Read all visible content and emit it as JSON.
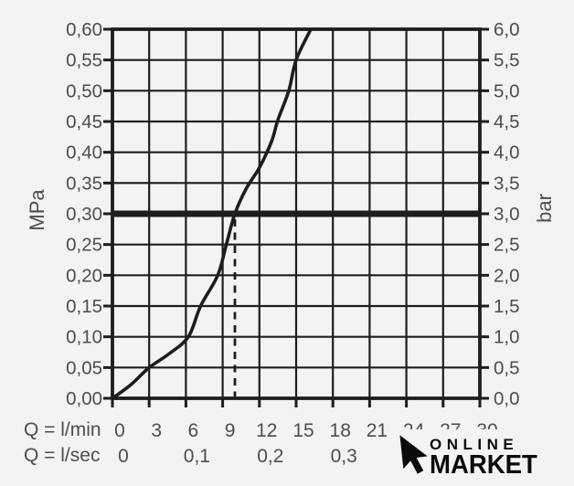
{
  "colors": {
    "background": "#f3f3f1",
    "grid": "#1d1d1b",
    "curve": "#1d1d1b",
    "text": "#4d4d4d",
    "watermark": "#0b0b0b"
  },
  "chart_data": {
    "type": "line",
    "title": "",
    "grid": true,
    "y_axis_left": {
      "label": "MPa",
      "range": [
        0,
        0.6
      ],
      "ticks": [
        {
          "v": 0.0,
          "label": "0,00"
        },
        {
          "v": 0.05,
          "label": "0,05"
        },
        {
          "v": 0.1,
          "label": "0,10"
        },
        {
          "v": 0.15,
          "label": "0,15"
        },
        {
          "v": 0.2,
          "label": "0,20"
        },
        {
          "v": 0.25,
          "label": "0,25"
        },
        {
          "v": 0.3,
          "label": "0,30"
        },
        {
          "v": 0.35,
          "label": "0,35"
        },
        {
          "v": 0.4,
          "label": "0,40"
        },
        {
          "v": 0.45,
          "label": "0,45"
        },
        {
          "v": 0.5,
          "label": "0,50"
        },
        {
          "v": 0.55,
          "label": "0,55"
        },
        {
          "v": 0.6,
          "label": "0,60"
        }
      ]
    },
    "y_axis_right": {
      "label": "bar",
      "range": [
        0,
        6
      ],
      "ticks": [
        {
          "v": 0.0,
          "label": "0,0"
        },
        {
          "v": 0.5,
          "label": "0,5"
        },
        {
          "v": 1.0,
          "label": "1,0"
        },
        {
          "v": 1.5,
          "label": "1,5"
        },
        {
          "v": 2.0,
          "label": "2,0"
        },
        {
          "v": 2.5,
          "label": "2,5"
        },
        {
          "v": 3.0,
          "label": "3,0"
        },
        {
          "v": 3.5,
          "label": "3,5"
        },
        {
          "v": 4.0,
          "label": "4,0"
        },
        {
          "v": 4.5,
          "label": "4,5"
        },
        {
          "v": 5.0,
          "label": "5,0"
        },
        {
          "v": 5.5,
          "label": "5,5"
        },
        {
          "v": 6.0,
          "label": "6,0"
        }
      ]
    },
    "x_axis": {
      "label": "Q = l/min",
      "range": [
        0,
        30
      ],
      "ticks": [
        {
          "v": 0,
          "label": "0"
        },
        {
          "v": 3,
          "label": "3"
        },
        {
          "v": 6,
          "label": "6"
        },
        {
          "v": 9,
          "label": "9"
        },
        {
          "v": 12,
          "label": "12"
        },
        {
          "v": 15,
          "label": "15"
        },
        {
          "v": 18,
          "label": "18"
        },
        {
          "v": 21,
          "label": "21"
        },
        {
          "v": 24,
          "label": "24"
        },
        {
          "v": 27,
          "label": "27"
        },
        {
          "v": 30,
          "label": "30"
        }
      ]
    },
    "x_axis_secondary": {
      "label": "Q = l/sec",
      "ticks": [
        {
          "v": 0,
          "label": "0"
        },
        {
          "v": 6,
          "label": "0,1"
        },
        {
          "v": 12,
          "label": "0,2"
        },
        {
          "v": 18,
          "label": "0,3"
        }
      ]
    },
    "series": [
      {
        "name": "pressure-flow-curve",
        "points": [
          [
            0,
            0
          ],
          [
            1.5,
            0.022
          ],
          [
            3,
            0.05
          ],
          [
            4.6,
            0.072
          ],
          [
            6.2,
            0.1
          ],
          [
            7.2,
            0.15
          ],
          [
            8.6,
            0.2
          ],
          [
            9.3,
            0.25
          ],
          [
            10,
            0.3
          ],
          [
            10.9,
            0.34
          ],
          [
            12,
            0.375
          ],
          [
            13,
            0.418
          ],
          [
            13.5,
            0.452
          ],
          [
            14.4,
            0.5
          ],
          [
            15,
            0.55
          ],
          [
            16.2,
            0.6
          ]
        ]
      }
    ],
    "reference_line": {
      "mpa": 0.3,
      "bar": 3.0
    },
    "marker_line": {
      "l_min": 10,
      "from_mpa": 0.3,
      "to_mpa": 0,
      "style": "dashed"
    }
  },
  "watermark": {
    "line1": "ONLINE",
    "line2": "MARKET",
    "icon": "cursor-arrow-icon"
  }
}
